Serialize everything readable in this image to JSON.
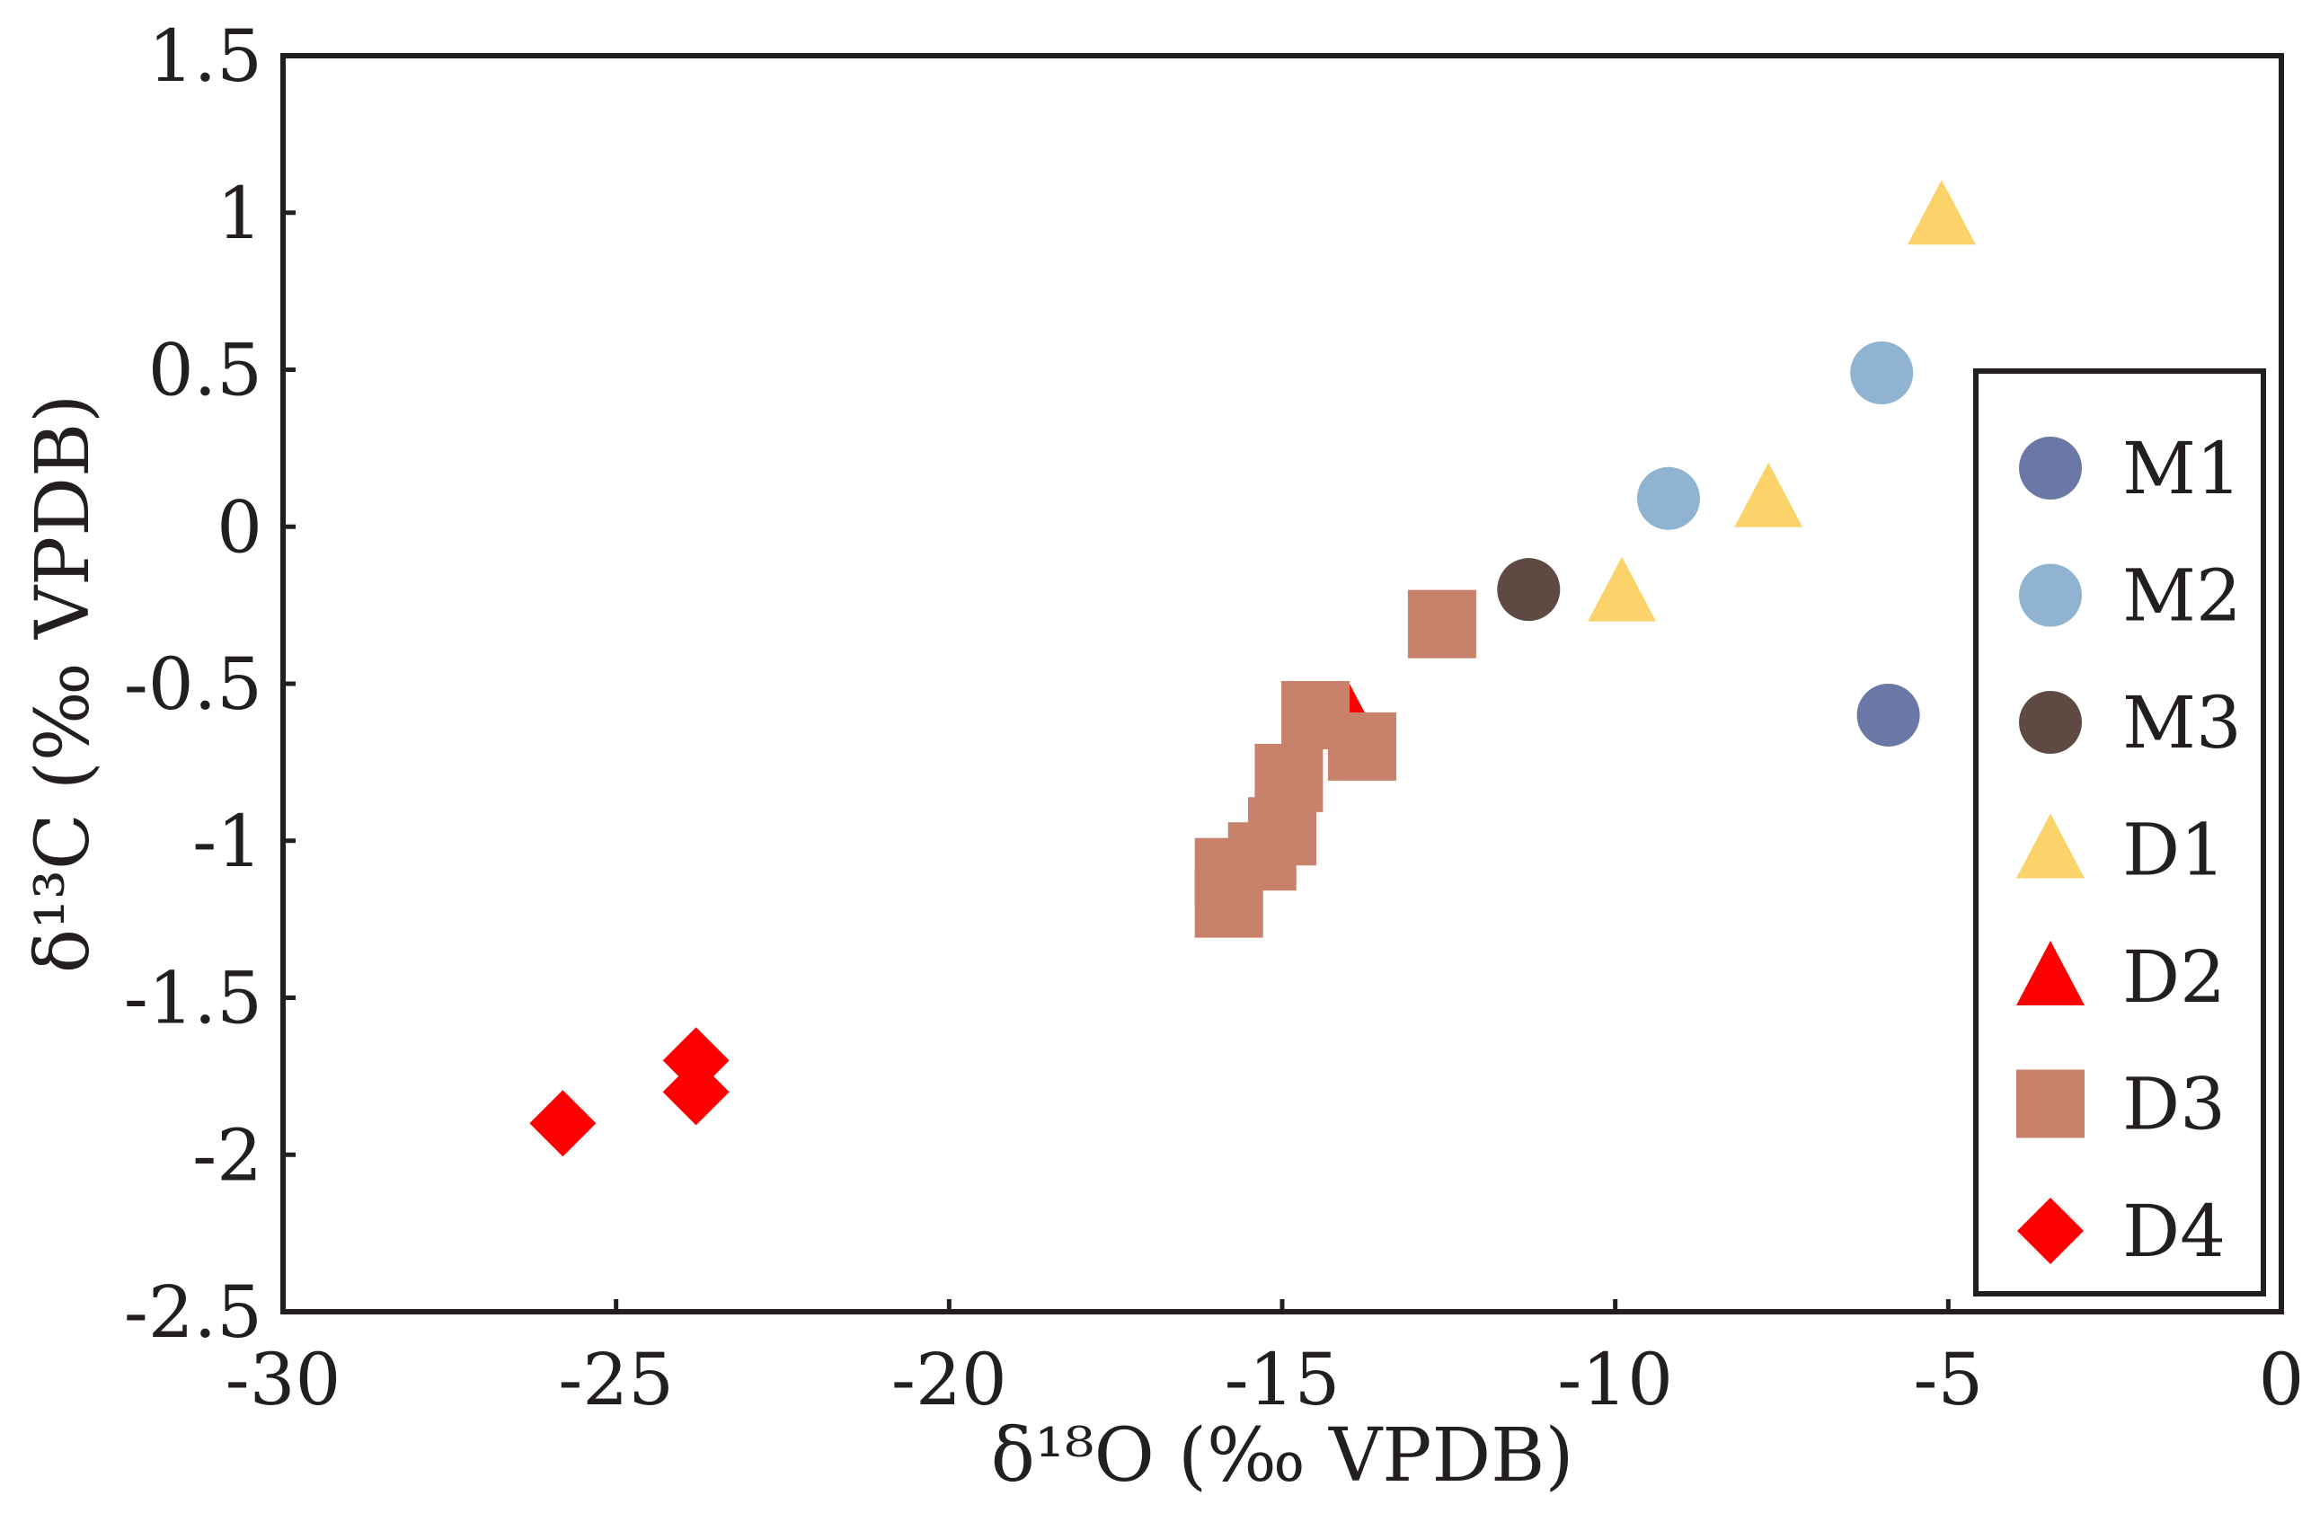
{
  "chart_data": {
    "type": "scatter",
    "xlabel": "δ¹⁸O (‰ VPDB)",
    "ylabel": "δ¹³C (‰ VPDB)",
    "xlim": [
      -30,
      0
    ],
    "ylim": [
      -2.5,
      1.5
    ],
    "x_ticks": [
      -30,
      -25,
      -20,
      -15,
      -10,
      -5,
      0
    ],
    "x_tick_labels": [
      "-30",
      "-25",
      "-20",
      "-15",
      "-10",
      "-5",
      "0"
    ],
    "y_ticks": [
      1.5,
      1,
      0.5,
      0,
      -0.5,
      -1,
      -1.5,
      -2,
      -2.5
    ],
    "y_tick_labels": [
      "1.5",
      "1",
      "0.5",
      "0",
      "-0.5",
      "-1",
      "-1.5",
      "-2",
      "-2.5"
    ],
    "legend_position": "right",
    "series": [
      {
        "name": "M1",
        "marker": "circle",
        "color": "#6b77a6",
        "points": [
          [
            -5.9,
            -0.6
          ]
        ]
      },
      {
        "name": "M2",
        "marker": "circle",
        "color": "#8fb3d0",
        "points": [
          [
            -6.0,
            0.49
          ],
          [
            -9.2,
            0.09
          ]
        ]
      },
      {
        "name": "M3",
        "marker": "circle",
        "color": "#5e4a43",
        "points": [
          [
            -11.3,
            -0.2
          ]
        ]
      },
      {
        "name": "D1",
        "marker": "triangle",
        "color": "#fcd36b",
        "points": [
          [
            -5.1,
            0.99
          ],
          [
            -7.7,
            0.09
          ],
          [
            -9.9,
            -0.21
          ]
        ]
      },
      {
        "name": "D2",
        "marker": "triangle",
        "color": "#ff0000",
        "points": [
          [
            -14.0,
            -0.61
          ]
        ]
      },
      {
        "name": "D3",
        "marker": "square",
        "color": "#c8826c",
        "points": [
          [
            -12.6,
            -0.31
          ],
          [
            -14.5,
            -0.6
          ],
          [
            -13.8,
            -0.7
          ],
          [
            -14.9,
            -0.8
          ],
          [
            -15.0,
            -0.97
          ],
          [
            -15.3,
            -1.05
          ],
          [
            -15.8,
            -1.1
          ],
          [
            -15.8,
            -1.2
          ]
        ]
      },
      {
        "name": "D4",
        "marker": "diamond",
        "color": "#ff0000",
        "points": [
          [
            -23.8,
            -1.7
          ],
          [
            -23.8,
            -1.8
          ],
          [
            -25.8,
            -1.9
          ]
        ]
      }
    ]
  }
}
